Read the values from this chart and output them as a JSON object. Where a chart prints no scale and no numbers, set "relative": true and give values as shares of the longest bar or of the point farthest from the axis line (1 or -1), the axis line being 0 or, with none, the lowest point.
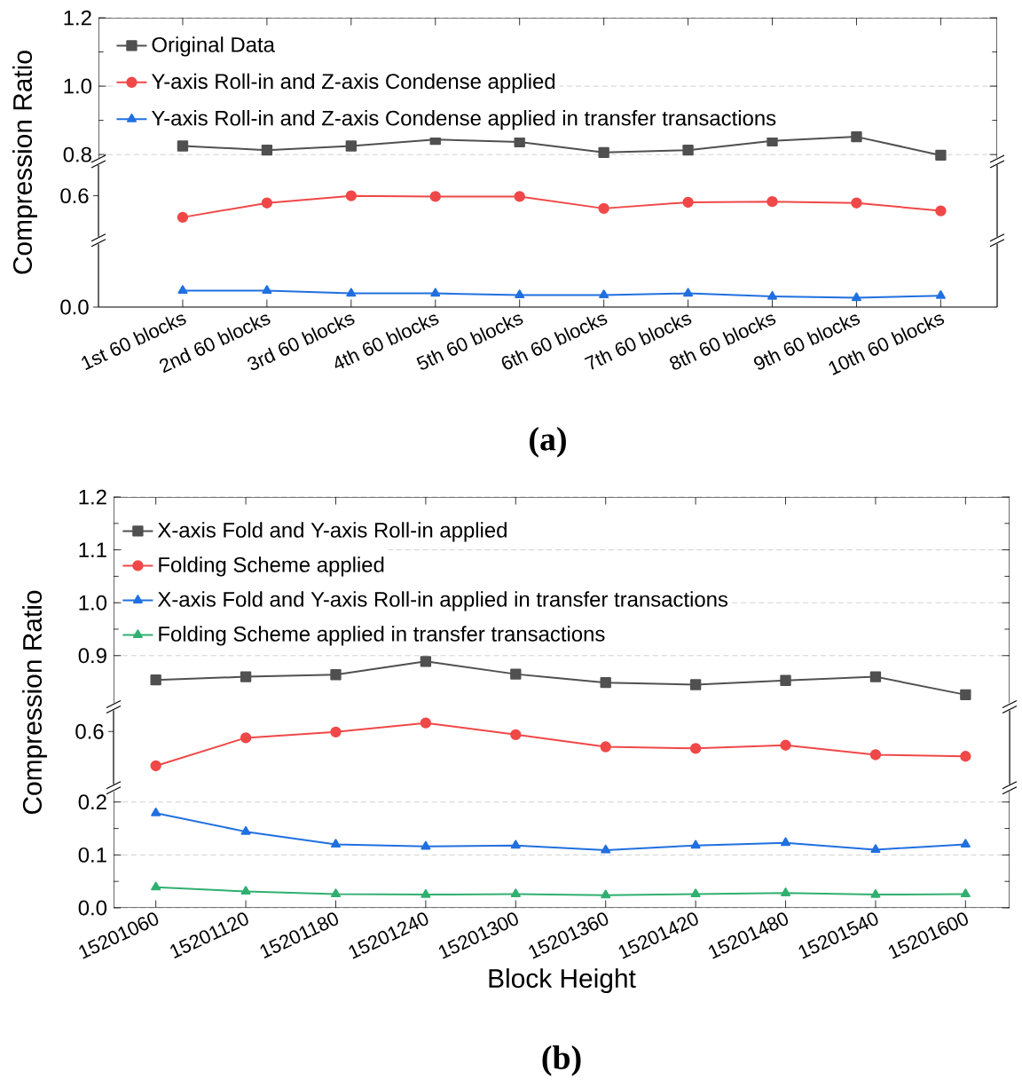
{
  "chart_data": [
    {
      "type": "line",
      "categories": [
        null,
        null,
        null,
        null,
        null,
        null,
        null,
        null,
        null,
        null
      ],
      "series": [
        {
          "name": "Original Data",
          "color": "#505050",
          "marker": "square",
          "values": [
            0.825,
            0.813,
            0.825,
            0.844,
            0.837,
            0.806,
            0.813,
            0.84,
            0.852,
            0.798
          ]
        }
      ],
      "ylim": [
        0.79,
        1.2
      ],
      "yticks": [
        0.8,
        {
          "value": 1.0,
          "label": "1.0"
        },
        1.2
      ],
      "grid": "y",
      "legend": "top left",
      "tick_labels": "y"
    },
    {
      "type": "line",
      "categories": [
        null,
        null,
        null,
        null,
        null,
        null,
        null,
        null,
        null,
        null
      ],
      "series": [
        {
          "name": "Y-axis Roll-in and Z-axis Condense applied",
          "color": "#f04848",
          "marker": "circle",
          "values": [
            0,
            0.667,
            1,
            0.968,
            0.968,
            0.413,
            0.698,
            0.73,
            0.667,
            0.302
          ]
        }
      ],
      "relative": true,
      "annotations": [
        "0.6"
      ],
      "ylabel": "Compression Ratio",
      "legend": "top left",
      "tick_labels": false
    },
    {
      "type": "line",
      "categories": [
        "1st 60 blocks",
        "2nd 60 blocks",
        "3rd 60 blocks",
        "4th 60 blocks",
        "5th 60 blocks",
        "6th 60 blocks",
        "7th 60 blocks",
        "8th 60 blocks",
        "9th 60 blocks",
        "10th 60 blocks"
      ],
      "series": [
        {
          "name": "Y-axis Roll-in and Z-axis Condense applied in transfer transactions",
          "color": "#2070e0",
          "marker": "triangle",
          "values": [
            1,
            1,
            0.833,
            0.833,
            0.729,
            0.729,
            0.833,
            0.646,
            0.563,
            0.688
          ]
        }
      ],
      "relative": true,
      "annotations": [
        "0.0"
      ],
      "legend": "top left",
      "tick_labels": "x",
      "title": "(a)"
    },
    {
      "type": "line",
      "categories": [
        null,
        null,
        null,
        null,
        null,
        null,
        null,
        null,
        null,
        null
      ],
      "series": [
        {
          "name": "X-axis Fold and Y-axis Roll-in applied",
          "color": "#505050",
          "marker": "square",
          "values": [
            0.854,
            0.86,
            0.864,
            0.889,
            0.865,
            0.849,
            0.845,
            0.853,
            0.86,
            0.826
          ]
        }
      ],
      "ylim": [
        0.81,
        1.2
      ],
      "yticks": [
        {
          "value": 0.9,
          "label": "0.9"
        },
        {
          "value": 1.0,
          "label": "1.0"
        },
        1.1,
        1.2
      ],
      "grid": "y",
      "legend": "top left",
      "tick_labels": "y"
    },
    {
      "type": "line",
      "categories": [
        null,
        null,
        null,
        null,
        null,
        null,
        null,
        null,
        null,
        null
      ],
      "series": [
        {
          "name": "Folding Scheme applied",
          "color": "#f04848",
          "marker": "circle",
          "values": [
            0,
            0.654,
            0.79,
            1,
            0.728,
            0.444,
            0.407,
            0.481,
            0.259,
            0.222
          ]
        }
      ],
      "relative": true,
      "annotations": [
        "0.6"
      ],
      "ylabel": "Compression Ratio",
      "legend": "top left",
      "tick_labels": false
    },
    {
      "type": "line",
      "categories": [
        "15201060",
        "15201120",
        "15201180",
        "15201240",
        "15201300",
        "15201360",
        "15201420",
        "15201480",
        "15201540",
        "15201600"
      ],
      "series": [
        {
          "name": "X-axis Fold and Y-axis Roll-in applied in transfer transactions",
          "color": "#2070e0",
          "marker": "triangle",
          "values": [
            0.179,
            0.144,
            0.12,
            0.116,
            0.118,
            0.109,
            0.118,
            0.123,
            0.11,
            0.12
          ]
        },
        {
          "name": "Folding Scheme applied in transfer transactions",
          "color": "#30b070",
          "marker": "triangle",
          "values": [
            0.039,
            0.031,
            0.026,
            0.025,
            0.026,
            0.024,
            0.026,
            0.028,
            0.025,
            0.026
          ]
        }
      ],
      "ylim": [
        0,
        0.22
      ],
      "yticks": [
        {
          "value": 0,
          "label": "0.0"
        },
        0.1,
        0.2
      ],
      "grid": "y",
      "legend": "top left",
      "xlabel": "Block Height",
      "title": "(b)"
    }
  ]
}
